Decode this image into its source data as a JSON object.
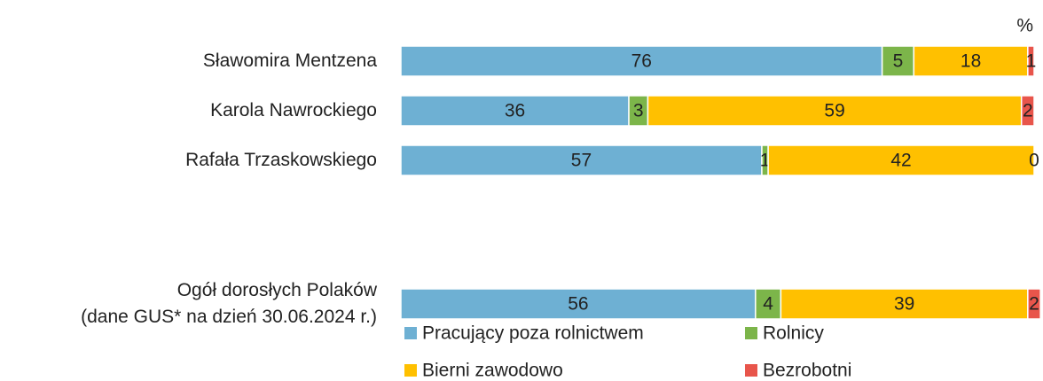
{
  "chart_data": {
    "type": "stacked-bar-horizontal",
    "unit": "%",
    "categories": [
      "Sławomira Mentzena",
      "Karola Nawrockiego",
      "Rafała Trzaskowskiego",
      "Ogół dorosłych Polaków\n(dane GUS* na dzień 30.06.2024 r.)"
    ],
    "series": [
      {
        "name": "Pracujący poza rolnictwem",
        "color": "#6eb0d3",
        "values": [
          76,
          36,
          57,
          56
        ]
      },
      {
        "name": "Rolnicy",
        "color": "#7cb54a",
        "values": [
          5,
          3,
          1,
          4
        ]
      },
      {
        "name": "Bierni zawodowo",
        "color": "#ffc000",
        "values": [
          18,
          59,
          42,
          39
        ]
      },
      {
        "name": "Bezrobotni",
        "color": "#e8554b",
        "values": [
          1,
          2,
          0,
          2
        ]
      }
    ]
  }
}
